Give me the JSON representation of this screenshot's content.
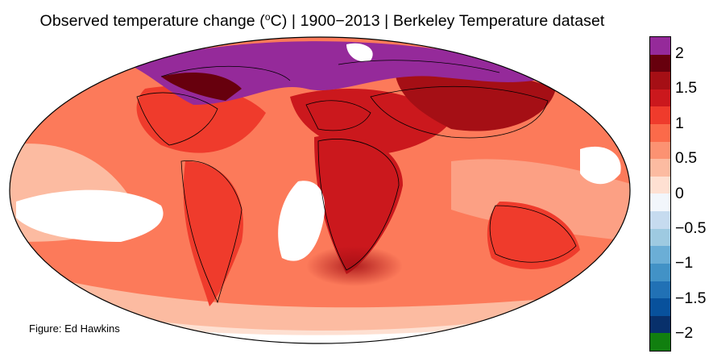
{
  "title": {
    "prefix": "Observed temperature change (",
    "superscript": "o",
    "suffix": "C) | 1900−2013 | Berkeley Temperature dataset"
  },
  "credit": "Figure: Ed Hawkins",
  "map": {
    "projection": "Mollweide",
    "land_outline_color": "#000000",
    "missing_data_color": "#ffffff"
  },
  "colorbar": {
    "bands": [
      {
        "label": "2.25",
        "color": "#952a9a"
      },
      {
        "label": "2",
        "color": "#67000d"
      },
      {
        "label": "1.75",
        "color": "#a50f15"
      },
      {
        "label": "1.5",
        "color": "#cb181d"
      },
      {
        "label": "1.25",
        "color": "#ef3b2c"
      },
      {
        "label": "1",
        "color": "#fb6a4a"
      },
      {
        "label": "0.75",
        "color": "#fc9272"
      },
      {
        "label": "0.5",
        "color": "#fcbba1"
      },
      {
        "label": "0.25",
        "color": "#fee0d2"
      },
      {
        "label": "0",
        "color": "#f2f6fb"
      },
      {
        "label": "-0.25",
        "color": "#c6dbef"
      },
      {
        "label": "-0.5",
        "color": "#9ecae1"
      },
      {
        "label": "-0.75",
        "color": "#6baed6"
      },
      {
        "label": "-1",
        "color": "#4292c6"
      },
      {
        "label": "-1.25",
        "color": "#2171b5"
      },
      {
        "label": "-1.5",
        "color": "#08519c"
      },
      {
        "label": "-1.75",
        "color": "#08306b"
      },
      {
        "label": "-2",
        "color": "#117f0f"
      }
    ],
    "ticks": [
      "2",
      "1.5",
      "1",
      "0.5",
      "0",
      "−0.5",
      "−1",
      "−1.5",
      "−2"
    ]
  }
}
